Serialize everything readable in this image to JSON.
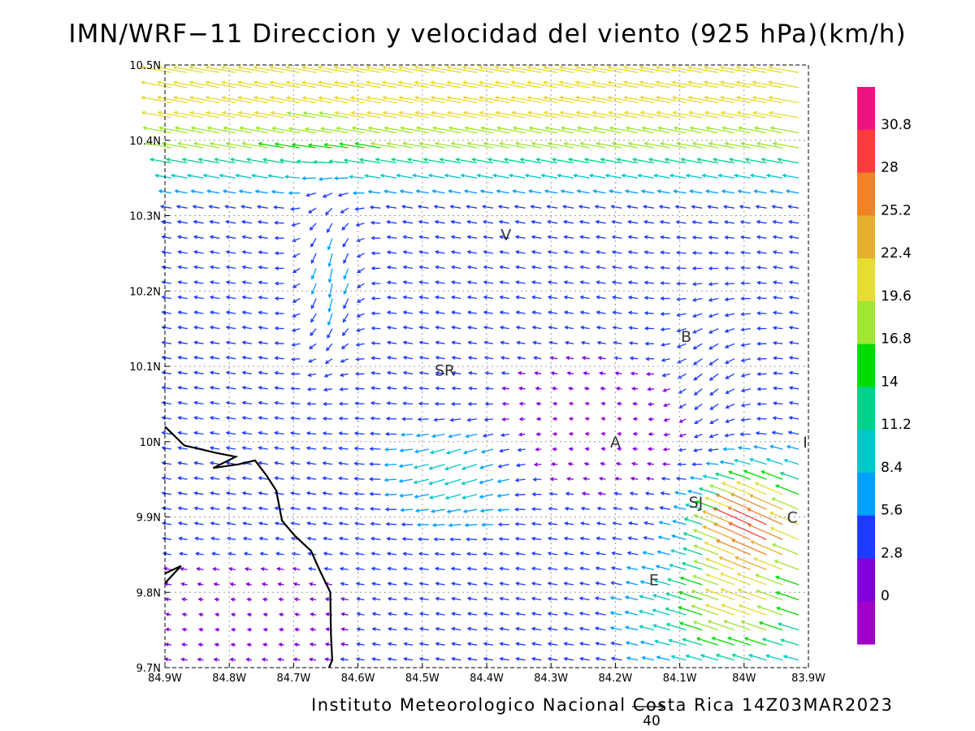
{
  "title": "IMN/WRF−11 Direccion y velocidad del viento (925 hPa)(km/h)",
  "footer": "Instituto Meteorologico Nacional Costa Rica 14Z03MAR2023",
  "reference_vector": {
    "label": "40",
    "value": 40
  },
  "axes": {
    "x_ticks": [
      "84.9W",
      "84.8W",
      "84.7W",
      "84.6W",
      "84.5W",
      "84.4W",
      "84.3W",
      "84.2W",
      "84.1W",
      "84W",
      "83.9W"
    ],
    "y_ticks": [
      "10.5N",
      "10.4N",
      "10.3N",
      "10.2N",
      "10.1N",
      "10N",
      "9.9N",
      "9.8N",
      "9.7N"
    ],
    "lon_range": [
      -84.9,
      -83.9
    ],
    "lat_range": [
      9.7,
      10.5
    ],
    "grid": true
  },
  "colorbar": {
    "labels": [
      "30.8",
      "28",
      "25.2",
      "22.4",
      "19.6",
      "16.8",
      "14",
      "11.2",
      "8.4",
      "5.6",
      "2.8",
      "0"
    ],
    "colors": [
      "#f0137f",
      "#fa3c3c",
      "#f08228",
      "#e6af2d",
      "#e6dc32",
      "#a0e632",
      "#00dc00",
      "#00d28c",
      "#00c8c8",
      "#00a0ff",
      "#1e3cff",
      "#8200dc",
      "#a000c8"
    ]
  },
  "places": [
    {
      "label": "V",
      "lon": -84.37,
      "lat": 10.275
    },
    {
      "label": "SR",
      "lon": -84.465,
      "lat": 10.095
    },
    {
      "label": "B",
      "lon": -84.09,
      "lat": 10.14
    },
    {
      "label": "A",
      "lon": -84.2,
      "lat": 10.0
    },
    {
      "label": "I",
      "lon": -83.905,
      "lat": 10.0
    },
    {
      "label": "SJ",
      "lon": -84.075,
      "lat": 9.92
    },
    {
      "label": "C",
      "lon": -83.925,
      "lat": 9.9
    },
    {
      "label": "E",
      "lon": -84.14,
      "lat": 9.817
    }
  ],
  "coastline": [
    [
      [
        -84.9,
        10.02
      ],
      [
        -84.87,
        9.995
      ],
      [
        -84.82,
        9.985
      ],
      [
        -84.79,
        9.98
      ],
      [
        -84.825,
        9.965
      ],
      [
        -84.785,
        9.97
      ],
      [
        -84.76,
        9.975
      ],
      [
        -84.742,
        9.955
      ],
      [
        -84.727,
        9.935
      ],
      [
        -84.718,
        9.895
      ],
      [
        -84.698,
        9.875
      ],
      [
        -84.673,
        9.855
      ],
      [
        -84.66,
        9.83
      ],
      [
        -84.643,
        9.8
      ],
      [
        -84.642,
        9.745
      ],
      [
        -84.64,
        9.71
      ],
      [
        -84.645,
        9.7
      ]
    ],
    [
      [
        -84.9,
        9.825
      ],
      [
        -84.875,
        9.835
      ],
      [
        -84.9,
        9.812
      ]
    ]
  ],
  "wind_field": {
    "units": "km/h",
    "source": "approximate reading of the vector field",
    "regions": [
      {
        "name": "northern easterly jet",
        "lon": [
          -84.9,
          -83.9
        ],
        "lat": [
          10.4,
          10.5
        ],
        "typical_speed": 22
      },
      {
        "name": "Caribbean inflow near C",
        "lon": [
          -84.0,
          -83.9
        ],
        "lat": [
          9.85,
          9.95
        ],
        "typical_speed": 27
      },
      {
        "name": "southeast inflow",
        "lon": [
          -84.1,
          -83.9
        ],
        "lat": [
          9.7,
          9.85
        ],
        "typical_speed": 20
      },
      {
        "name": "central valley",
        "lon": [
          -84.4,
          -84.1
        ],
        "lat": [
          9.95,
          10.1
        ],
        "typical_speed": 4
      },
      {
        "name": "southwest lowlands",
        "lon": [
          -84.9,
          -84.6
        ],
        "lat": [
          9.7,
          9.85
        ],
        "typical_speed": 3
      }
    ]
  }
}
